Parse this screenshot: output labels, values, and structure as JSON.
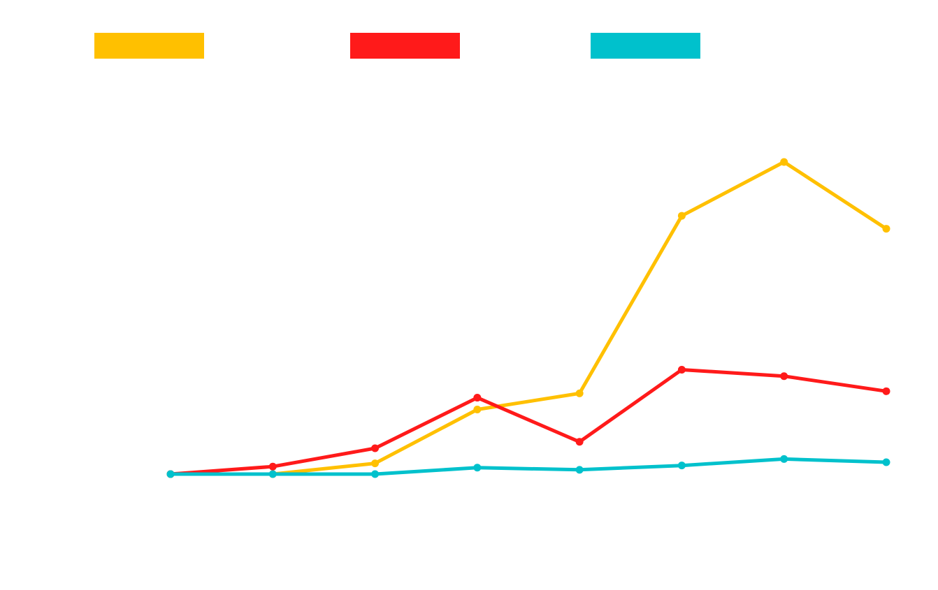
{
  "chart_data": {
    "type": "line",
    "title": "",
    "xlabel": "",
    "ylabel": "",
    "grid": false,
    "legend_position": "top",
    "x": [
      1,
      2,
      3,
      4,
      5,
      6,
      7,
      8
    ],
    "ylim": [
      -6,
      45
    ],
    "series": [
      {
        "name": "",
        "color": "#ffc000",
        "values": [
          0,
          0,
          1,
          6,
          7.5,
          24,
          29,
          22.8
        ]
      },
      {
        "name": "",
        "color": "#ff1a1a",
        "values": [
          0,
          0.7,
          2.4,
          7.1,
          3.0,
          9.7,
          9.1,
          7.7
        ]
      },
      {
        "name": "",
        "color": "#00c1cc",
        "values": [
          0,
          0,
          0,
          0.6,
          0.4,
          0.8,
          1.4,
          1.1
        ]
      }
    ]
  }
}
